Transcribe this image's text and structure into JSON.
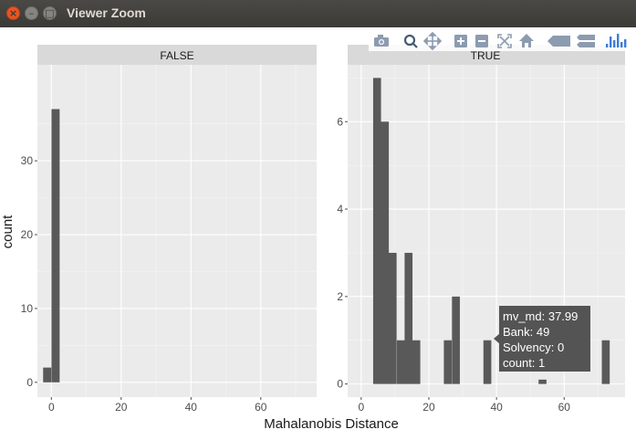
{
  "window": {
    "title": "Viewer Zoom"
  },
  "toolbar": {
    "icons": [
      "camera-icon",
      "zoom-icon",
      "pan-icon",
      "zoom-in-icon",
      "zoom-out-icon",
      "autoscale-icon",
      "home-icon",
      "hover-closest-icon",
      "hover-compare-icon",
      "plotly-logo"
    ]
  },
  "chart_data": {
    "type": "bar",
    "x_label": "Mahalanobis Distance",
    "y_label": "count",
    "bin_width": 2.33,
    "panels": [
      {
        "strip": "FALSE",
        "xlim": [
          -4,
          76
        ],
        "ylim": [
          -2,
          43
        ],
        "x_ticks": [
          0,
          20,
          40,
          60
        ],
        "y_ticks": [
          0,
          10,
          20,
          30
        ],
        "x_tick_labels": [
          "0",
          "20",
          "40",
          "60"
        ],
        "y_tick_labels": [
          "0",
          "10",
          "20",
          "30"
        ],
        "bars": [
          {
            "x": -1.2,
            "count": 2
          },
          {
            "x": 1.2,
            "count": 37
          }
        ]
      },
      {
        "strip": "TRUE",
        "xlim": [
          -4,
          78
        ],
        "ylim": [
          -0.3,
          7.3
        ],
        "x_ticks": [
          0,
          20,
          40,
          60
        ],
        "y_ticks": [
          0,
          2,
          4,
          6
        ],
        "x_tick_labels": [
          "0",
          "20",
          "40",
          "60"
        ],
        "y_tick_labels": [
          "0",
          "2",
          "4",
          "6"
        ],
        "bars": [
          {
            "x": 4.7,
            "count": 7
          },
          {
            "x": 7.0,
            "count": 6
          },
          {
            "x": 9.3,
            "count": 3
          },
          {
            "x": 11.7,
            "count": 1
          },
          {
            "x": 14.0,
            "count": 3
          },
          {
            "x": 16.3,
            "count": 1
          },
          {
            "x": 25.6,
            "count": 1
          },
          {
            "x": 28.0,
            "count": 2
          },
          {
            "x": 37.3,
            "count": 1
          },
          {
            "x": 53.6,
            "count": 0.1
          },
          {
            "x": 72.3,
            "count": 1
          }
        ]
      }
    ]
  },
  "tooltip": {
    "lines": [
      "mv_md: 37.99",
      "Bank: 49",
      "Solvency: 0",
      "count: 1"
    ]
  }
}
